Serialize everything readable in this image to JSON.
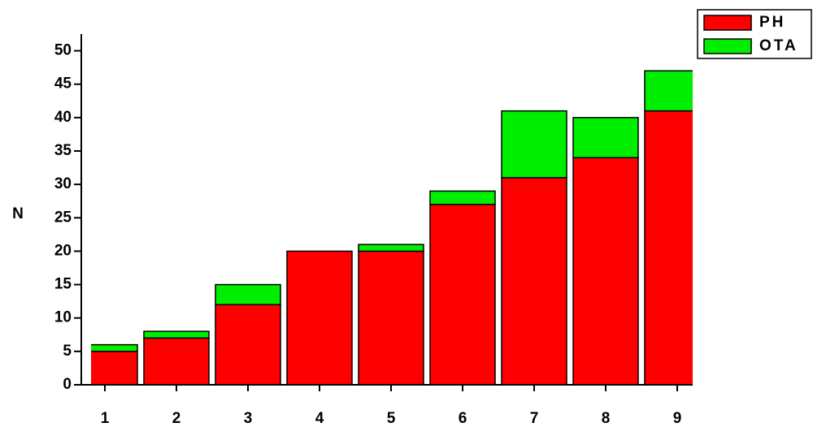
{
  "chart_data": {
    "type": "bar",
    "stacked": true,
    "y_label": "N",
    "categories": [
      "1",
      "2",
      "3",
      "4",
      "5",
      "6",
      "7",
      "8",
      "9"
    ],
    "series": [
      {
        "name": "PH",
        "color": "#ff0000",
        "values": [
          5,
          7,
          12,
          20,
          20,
          27,
          31,
          34,
          41
        ]
      },
      {
        "name": "OTA",
        "color": "#00ee00",
        "values": [
          1,
          1,
          3,
          0,
          1,
          2,
          10,
          6,
          6
        ]
      }
    ],
    "ylim": [
      0,
      52.5
    ],
    "yticks": [
      0,
      5,
      10,
      15,
      20,
      25,
      30,
      35,
      40,
      45,
      50
    ],
    "legend": "top-right"
  }
}
